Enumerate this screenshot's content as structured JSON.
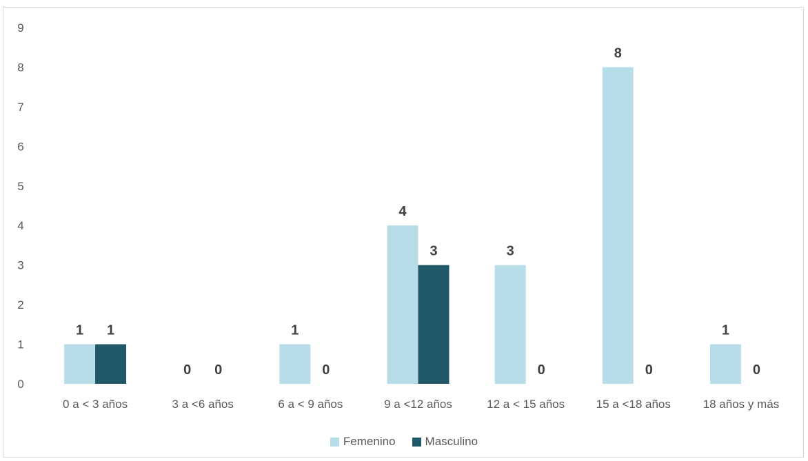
{
  "chart_data": {
    "type": "bar",
    "title": "",
    "xlabel": "",
    "ylabel": "",
    "ylim": [
      0,
      9
    ],
    "y_ticks": [
      0,
      1,
      2,
      3,
      4,
      5,
      6,
      7,
      8,
      9
    ],
    "grid": false,
    "legend_position": "bottom",
    "categories": [
      "0 a < 3 años",
      "3 a <6 años",
      "6 a < 9 años",
      "9 a <12 años",
      "12 a < 15 años",
      "15 a <18 años",
      "18 años y más"
    ],
    "series": [
      {
        "name": "Femenino",
        "color": "#b7dde8",
        "values": [
          1,
          0,
          1,
          4,
          3,
          8,
          1
        ]
      },
      {
        "name": "Masculino",
        "color": "#215968",
        "values": [
          1,
          0,
          0,
          3,
          0,
          0,
          0
        ]
      }
    ],
    "data_labels": true
  }
}
